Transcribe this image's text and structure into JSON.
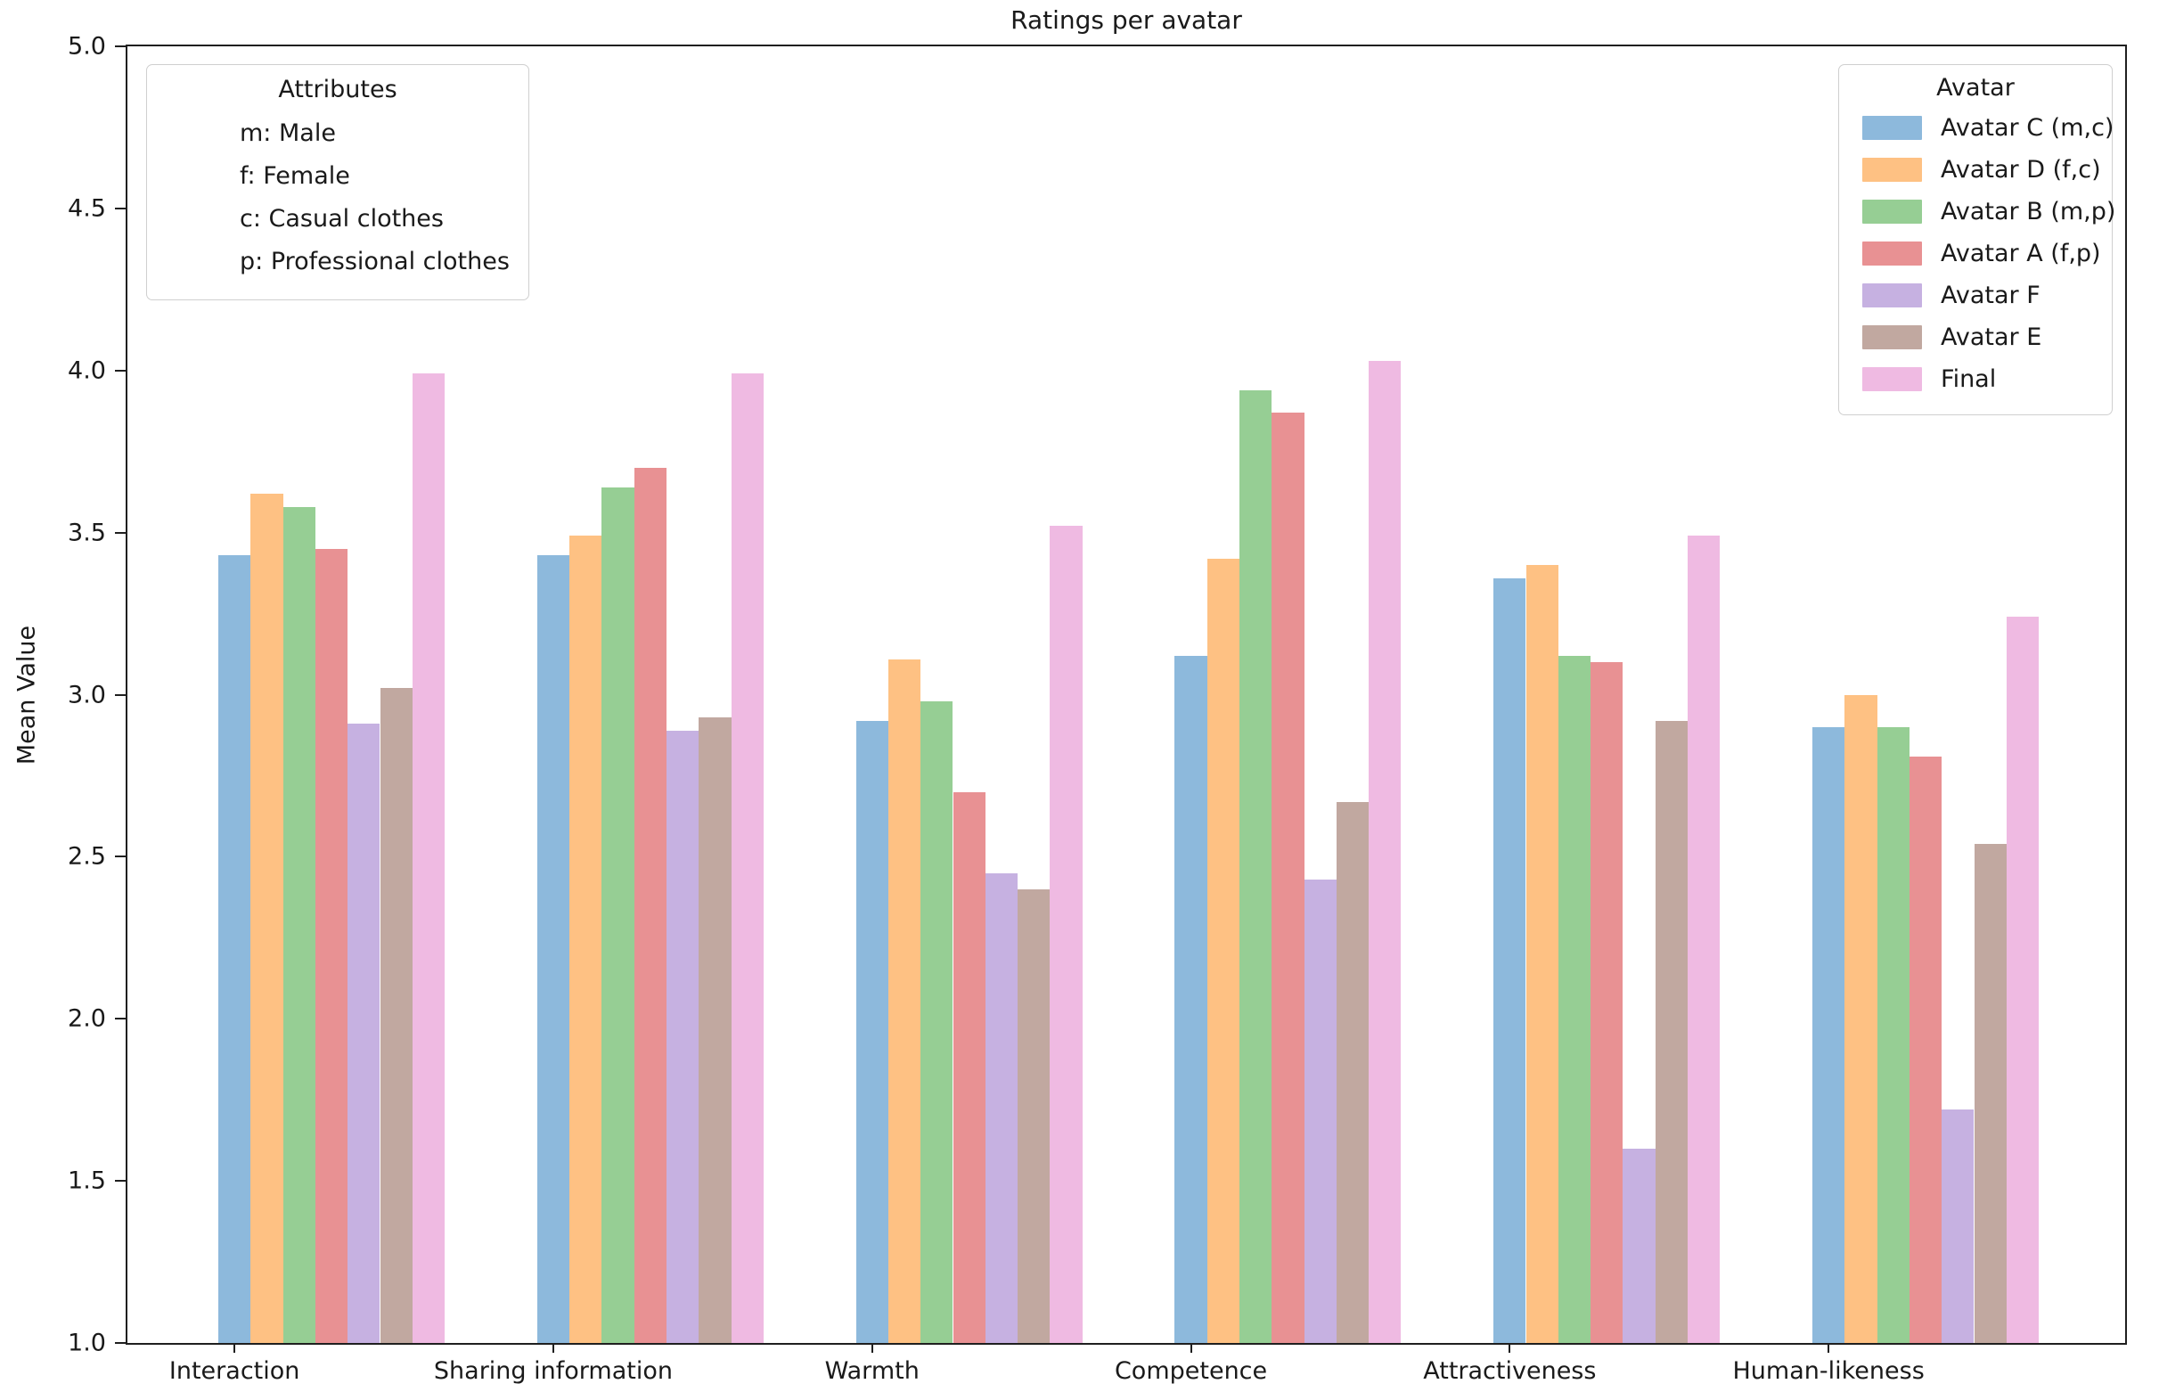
{
  "chart_data": {
    "type": "bar",
    "title": "Ratings per avatar",
    "ylabel": "Mean Value",
    "xlabel": "",
    "ylim": [
      1.0,
      5.0
    ],
    "ytick_step": 0.5,
    "ytick_labels": [
      "5.0",
      "4.5",
      "4.0",
      "3.5",
      "3.0",
      "2.5",
      "2.0",
      "1.5",
      "1.0"
    ],
    "grid": false,
    "categories": [
      "Interaction",
      "Sharing information",
      "Warmth",
      "Competence",
      "Attractiveness",
      "Human-likeness"
    ],
    "series": [
      {
        "name": "Avatar C (m,c)",
        "color": "#8db9dc",
        "values": [
          3.43,
          3.43,
          2.92,
          3.12,
          3.36,
          2.9
        ]
      },
      {
        "name": "Avatar D (f,c)",
        "color": "#fec183",
        "values": [
          3.62,
          3.49,
          3.11,
          3.42,
          3.4,
          3.0
        ]
      },
      {
        "name": "Avatar B (m,p)",
        "color": "#96ce94",
        "values": [
          3.58,
          3.64,
          2.98,
          3.94,
          3.12,
          2.9
        ]
      },
      {
        "name": "Avatar A (f,p)",
        "color": "#e89193",
        "values": [
          3.45,
          3.7,
          2.7,
          3.87,
          3.1,
          2.81
        ]
      },
      {
        "name": "Avatar F",
        "color": "#c6b1e1",
        "values": [
          2.91,
          2.89,
          2.45,
          2.43,
          1.6,
          1.72
        ]
      },
      {
        "name": "Avatar E",
        "color": "#c1a8a0",
        "values": [
          3.02,
          2.93,
          2.4,
          2.67,
          2.92,
          2.54
        ]
      },
      {
        "name": "Final",
        "color": "#efbae2",
        "values": [
          3.99,
          3.99,
          3.52,
          4.03,
          3.49,
          3.24
        ]
      }
    ],
    "legend": {
      "title": "Avatar",
      "position": "upper right"
    },
    "annotation_box": {
      "title": "Attributes",
      "lines": [
        "m: Male",
        "f: Female",
        "c: Casual clothes",
        "p: Professional clothes"
      ]
    }
  }
}
